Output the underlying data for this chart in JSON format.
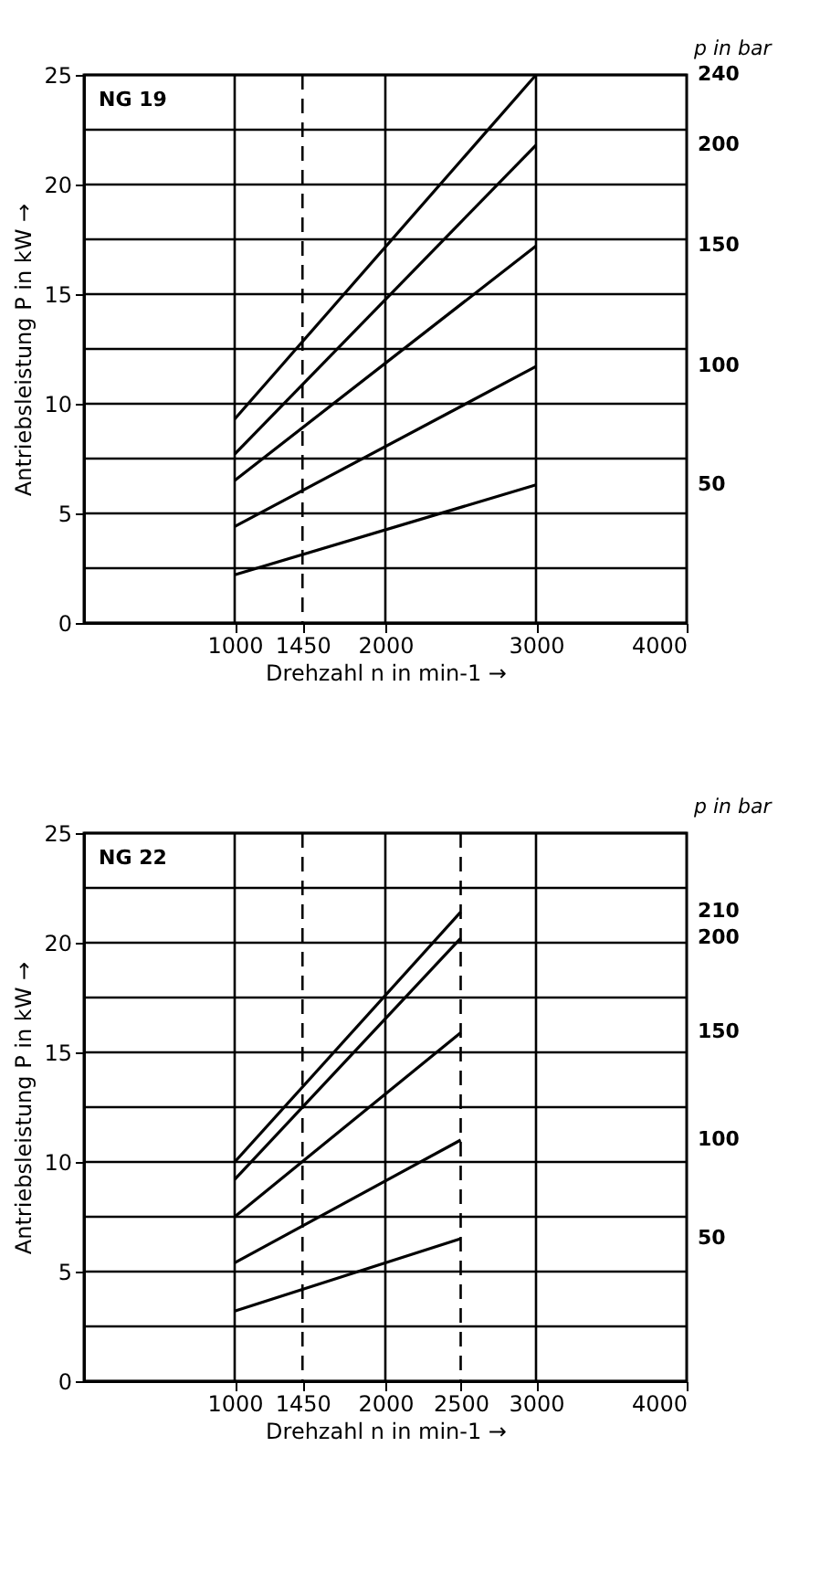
{
  "chart_data": [
    {
      "type": "line",
      "annotations": [
        "NG 19"
      ],
      "xlabel": "Drehzahl n in min-1 →",
      "ylabel": "Antriebsleistung P in kW →",
      "legend_title": "p in bar",
      "xlim": [
        0,
        4000
      ],
      "xticks": [
        1000,
        1450,
        2000,
        3000,
        4000
      ],
      "ylim": [
        0,
        25
      ],
      "yticks": [
        0,
        {
          "value": 2.5,
          "label": null
        },
        5,
        {
          "value": 7.5,
          "label": null
        },
        10,
        {
          "value": 12.5,
          "label": null
        },
        15,
        {
          "value": 17.5,
          "label": null
        },
        20,
        {
          "value": 22.5,
          "label": null
        },
        25
      ],
      "grid": "y",
      "legend": "right",
      "ref_lines": [
        {
          "axis": "x",
          "value": 1000,
          "line_style": "solid"
        },
        {
          "axis": "x",
          "value": 1450,
          "line_style": "dashed"
        },
        {
          "axis": "x",
          "value": 2000,
          "line_style": "solid"
        },
        {
          "axis": "x",
          "value": 3000,
          "line_style": "solid"
        }
      ],
      "x": [
        1000,
        3000
      ],
      "series": [
        {
          "name": "240",
          "color": "#000000",
          "values": [
            9.3,
            25
          ]
        },
        {
          "name": "200",
          "color": "#000000",
          "values": [
            7.7,
            21.8
          ]
        },
        {
          "name": "150",
          "color": "#000000",
          "values": [
            6.5,
            17.2
          ]
        },
        {
          "name": "100",
          "color": "#000000",
          "values": [
            4.4,
            11.7
          ]
        },
        {
          "name": "50",
          "color": "#000000",
          "values": [
            2.2,
            6.3
          ]
        }
      ]
    },
    {
      "type": "line",
      "annotations": [
        "NG 22"
      ],
      "xlabel": "Drehzahl n in min-1 →",
      "ylabel": "Antriebsleistung P in kW →",
      "legend_title": "p in bar",
      "xlim": [
        0,
        4000
      ],
      "xticks": [
        1000,
        1450,
        2000,
        2500,
        3000,
        4000
      ],
      "ylim": [
        0,
        25
      ],
      "yticks": [
        0,
        {
          "value": 2.5,
          "label": null
        },
        5,
        {
          "value": 7.5,
          "label": null
        },
        10,
        {
          "value": 12.5,
          "label": null
        },
        15,
        {
          "value": 17.5,
          "label": null
        },
        20,
        {
          "value": 22.5,
          "label": null
        },
        25
      ],
      "grid": "y",
      "legend": "right",
      "ref_lines": [
        {
          "axis": "x",
          "value": 1000,
          "line_style": "solid"
        },
        {
          "axis": "x",
          "value": 1450,
          "line_style": "dashed"
        },
        {
          "axis": "x",
          "value": 2000,
          "line_style": "solid"
        },
        {
          "axis": "x",
          "value": 2500,
          "line_style": "dashed"
        },
        {
          "axis": "x",
          "value": 3000,
          "line_style": "solid"
        }
      ],
      "x": [
        1000,
        2500
      ],
      "series": [
        {
          "name": "210",
          "color": "#000000",
          "values": [
            10.0,
            21.4
          ]
        },
        {
          "name": "200",
          "color": "#000000",
          "values": [
            9.2,
            20.2
          ]
        },
        {
          "name": "150",
          "color": "#000000",
          "values": [
            7.5,
            15.9
          ]
        },
        {
          "name": "100",
          "color": "#000000",
          "values": [
            5.4,
            11.0
          ]
        },
        {
          "name": "50",
          "color": "#000000",
          "values": [
            3.2,
            6.5
          ]
        }
      ]
    }
  ]
}
